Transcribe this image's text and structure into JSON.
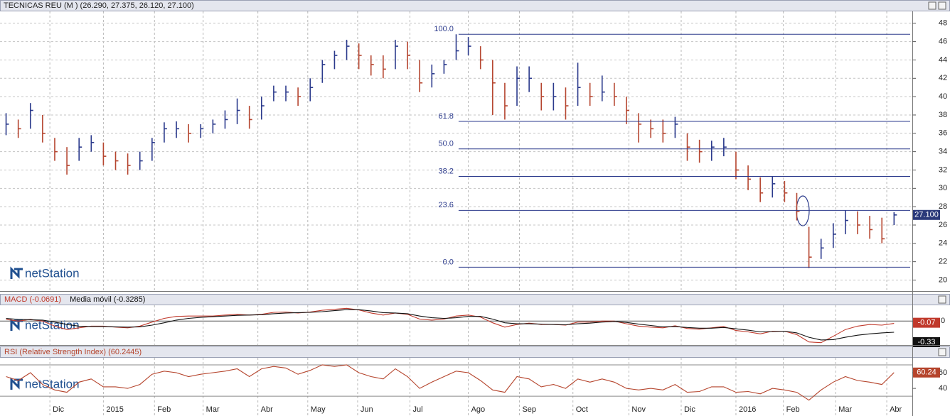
{
  "watermark": "netStation",
  "chart_data": [
    {
      "type": "hlc",
      "title": "TECNICAS REU (M ) (26.290, 27.375, 26.120, 27.100)",
      "x": [
        0,
        1,
        2,
        3,
        4,
        5,
        6,
        7,
        8,
        9,
        10,
        11,
        12,
        13,
        14,
        15,
        16,
        17,
        18,
        19,
        20,
        21,
        22,
        23,
        24,
        25,
        26,
        27,
        28,
        29,
        30,
        31,
        32,
        33,
        34,
        35,
        36,
        37,
        38,
        39,
        40,
        41,
        42,
        43,
        44,
        45,
        46,
        47,
        48,
        49,
        50,
        51,
        52,
        53,
        54,
        55,
        56,
        57,
        58,
        59,
        60,
        61,
        62,
        63,
        64,
        65,
        66,
        67,
        68,
        69,
        70,
        71,
        72,
        73
      ],
      "high": [
        38.2,
        37.5,
        39.3,
        38,
        35.5,
        34.5,
        35.5,
        35.8,
        35,
        34,
        33.8,
        34,
        35.5,
        37.2,
        37.3,
        37,
        37,
        37.5,
        38.5,
        39.8,
        39,
        40,
        41.2,
        41.2,
        41,
        42,
        44,
        45,
        46.2,
        45.8,
        44.5,
        44.5,
        46.2,
        46,
        44,
        43.5,
        44,
        46.8,
        46.5,
        45.5,
        44,
        41.5,
        43.3,
        43.3,
        41.5,
        41.5,
        41,
        43.7,
        41.5,
        42.3,
        41.5,
        40,
        38.2,
        37.5,
        37.5,
        37.8,
        36,
        35.3,
        35.2,
        35.5,
        34,
        32.5,
        31.2,
        31.3,
        30.8,
        29.5,
        25.8,
        24.5,
        26.2,
        27.6,
        27.5,
        27,
        26.8,
        27.4
      ],
      "low": [
        35.8,
        35.5,
        36.5,
        35,
        33,
        31.5,
        33,
        34,
        32.5,
        32,
        31.5,
        32,
        33,
        35,
        35.5,
        35,
        35.5,
        36,
        36.5,
        37,
        36.5,
        37.5,
        39.5,
        39.5,
        39,
        39.5,
        41.5,
        43,
        44,
        43,
        42.3,
        42,
        43,
        43,
        40.5,
        41,
        42.5,
        44,
        44.5,
        43,
        38,
        37.5,
        39,
        40.5,
        38.5,
        38.5,
        37.5,
        39,
        39,
        39.5,
        39,
        37,
        35,
        35.5,
        35,
        35.5,
        33,
        32.8,
        33,
        33.5,
        31,
        29.8,
        28.5,
        29,
        28.5,
        26.5,
        21.3,
        22.3,
        23.5,
        25,
        25,
        24.5,
        24,
        26
      ],
      "close": [
        37,
        36.5,
        38.5,
        36,
        34,
        32.5,
        34.5,
        35,
        33.5,
        33,
        32.5,
        33,
        35,
        36.5,
        36.5,
        36,
        36.5,
        37,
        37.5,
        38.5,
        37.5,
        39,
        40.5,
        40.5,
        40,
        41,
        43.5,
        44.5,
        45.5,
        44.5,
        43.5,
        43,
        45.5,
        44.5,
        41.5,
        42.5,
        43.5,
        45,
        45.5,
        44,
        41.5,
        39,
        42,
        42,
        40,
        40,
        39,
        41,
        40,
        40.5,
        40,
        38.5,
        37,
        36.5,
        36,
        37,
        34.5,
        34,
        34.5,
        34.5,
        32,
        31,
        29.5,
        30.5,
        29.5,
        27.5,
        22.5,
        23.5,
        25,
        26.5,
        26,
        25.5,
        24.5,
        27.1
      ],
      "up_color": "#2b3a8c",
      "down_color": "#b5452f",
      "last_label": "27.100",
      "xlim": [
        -0.5,
        74.5
      ],
      "xticks": [
        {
          "value": 3.6,
          "label": "Dic"
        },
        {
          "value": 8.0,
          "label": "2015"
        },
        {
          "value": 12.2,
          "label": "Feb"
        },
        {
          "value": 16.2,
          "label": "Mar"
        },
        {
          "value": 20.7,
          "label": "Abr"
        },
        {
          "value": 24.8,
          "label": "May"
        },
        {
          "value": 28.9,
          "label": "Jun"
        },
        {
          "value": 33.2,
          "label": "Jul"
        },
        {
          "value": 38.0,
          "label": "Ago"
        },
        {
          "value": 42.2,
          "label": "Sep"
        },
        {
          "value": 46.6,
          "label": "Oct"
        },
        {
          "value": 51.2,
          "label": "Nov"
        },
        {
          "value": 55.5,
          "label": "Dic"
        },
        {
          "value": 60.0,
          "label": "2016"
        },
        {
          "value": 63.9,
          "label": "Feb"
        },
        {
          "value": 68.2,
          "label": "Mar"
        },
        {
          "value": 72.4,
          "label": "Abr"
        }
      ],
      "ylim": [
        18.8,
        49.3
      ],
      "yticks": [
        20,
        22,
        24,
        26,
        28,
        30,
        32,
        34,
        36,
        38,
        40,
        42,
        44,
        46,
        48
      ],
      "grid": true,
      "fibonacci": {
        "x_start": 37.2,
        "color": "#2b3a8c",
        "levels": [
          {
            "label": "100.0",
            "price": 46.8
          },
          {
            "label": "61.8",
            "price": 37.3
          },
          {
            "label": "50.0",
            "price": 34.3
          },
          {
            "label": "38.2",
            "price": 31.3
          },
          {
            "label": "23.6",
            "price": 27.6
          },
          {
            "label": "0.0",
            "price": 21.4
          }
        ]
      }
    },
    {
      "type": "line",
      "ylim": [
        -0.71,
        0.47
      ],
      "yticks": [
        0
      ],
      "grid": true,
      "series": [
        {
          "name": "MACD (-0.0691)",
          "color": "#c0392b",
          "tag": "-0.07",
          "values": [
            0.05,
            0.0,
            0.05,
            0.0,
            -0.15,
            -0.25,
            -0.2,
            -0.15,
            -0.15,
            -0.18,
            -0.2,
            -0.15,
            -0.03,
            0.08,
            0.14,
            0.15,
            0.15,
            0.15,
            0.18,
            0.2,
            0.18,
            0.2,
            0.26,
            0.27,
            0.24,
            0.27,
            0.32,
            0.35,
            0.38,
            0.33,
            0.24,
            0.18,
            0.24,
            0.2,
            0.06,
            0.03,
            0.06,
            0.15,
            0.18,
            0.12,
            -0.05,
            -0.18,
            -0.1,
            -0.06,
            -0.1,
            -0.1,
            -0.12,
            -0.03,
            -0.03,
            0.0,
            0.0,
            -0.08,
            -0.15,
            -0.18,
            -0.2,
            -0.14,
            -0.22,
            -0.24,
            -0.2,
            -0.16,
            -0.28,
            -0.32,
            -0.38,
            -0.3,
            -0.3,
            -0.4,
            -0.62,
            -0.64,
            -0.45,
            -0.25,
            -0.15,
            -0.1,
            -0.12,
            -0.07
          ]
        },
        {
          "name": "Media móvil (-0.3285)",
          "color": "#111111",
          "tag": "-0.33",
          "values": [
            0.08,
            0.05,
            0.04,
            0.03,
            -0.03,
            -0.1,
            -0.15,
            -0.16,
            -0.16,
            -0.17,
            -0.18,
            -0.17,
            -0.12,
            -0.05,
            0.03,
            0.08,
            0.11,
            0.13,
            0.15,
            0.17,
            0.18,
            0.19,
            0.22,
            0.24,
            0.25,
            0.26,
            0.28,
            0.31,
            0.34,
            0.34,
            0.3,
            0.25,
            0.24,
            0.22,
            0.15,
            0.1,
            0.08,
            0.1,
            0.14,
            0.14,
            0.06,
            -0.05,
            -0.08,
            -0.08,
            -0.09,
            -0.1,
            -0.11,
            -0.08,
            -0.06,
            -0.03,
            -0.01,
            -0.04,
            -0.09,
            -0.13,
            -0.17,
            -0.16,
            -0.19,
            -0.21,
            -0.21,
            -0.19,
            -0.23,
            -0.27,
            -0.32,
            -0.31,
            -0.3,
            -0.35,
            -0.48,
            -0.56,
            -0.55,
            -0.48,
            -0.42,
            -0.38,
            -0.35,
            -0.33
          ]
        }
      ]
    },
    {
      "type": "line",
      "ylim": [
        4.8,
        79
      ],
      "yticks": [
        40,
        60
      ],
      "grid": false,
      "levels": [
        30,
        70
      ],
      "series": [
        {
          "name": "RSI (Relative Strength Index) (60.2445)",
          "color": "#b5442c",
          "tag": "60.24",
          "values": [
            55,
            50,
            60,
            45,
            38,
            35,
            48,
            52,
            42,
            42,
            40,
            45,
            58,
            62,
            60,
            55,
            58,
            60,
            62,
            65,
            55,
            65,
            68,
            66,
            58,
            63,
            70,
            68,
            70,
            60,
            55,
            52,
            65,
            55,
            40,
            48,
            55,
            62,
            60,
            50,
            38,
            35,
            55,
            52,
            42,
            45,
            40,
            52,
            48,
            52,
            48,
            40,
            38,
            40,
            38,
            45,
            35,
            36,
            42,
            42,
            35,
            36,
            33,
            40,
            38,
            35,
            25,
            38,
            48,
            55,
            50,
            48,
            45,
            60.2
          ]
        }
      ]
    }
  ]
}
